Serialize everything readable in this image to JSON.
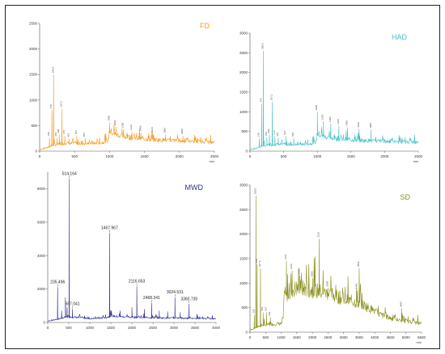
{
  "chart_data": [
    {
      "id": "fd",
      "type": "line",
      "title": "FD",
      "color": "#f39a1e",
      "xlabel": "m/z",
      "xlim": [
        0,
        2500
      ],
      "ylim": [
        0,
        2500
      ],
      "xticks": [
        0,
        500,
        1000,
        1500,
        2000,
        2500
      ],
      "yticks": [
        0,
        500,
        1000,
        1500,
        2000,
        2500
      ],
      "baseline": [
        [
          0,
          30
        ],
        [
          80,
          55
        ],
        [
          150,
          90
        ],
        [
          200,
          120
        ],
        [
          300,
          140
        ],
        [
          400,
          155
        ],
        [
          500,
          150
        ],
        [
          600,
          145
        ],
        [
          700,
          150
        ],
        [
          800,
          155
        ],
        [
          900,
          170
        ],
        [
          980,
          210
        ],
        [
          1000,
          400
        ],
        [
          1050,
          350
        ],
        [
          1150,
          300
        ],
        [
          1300,
          270
        ],
        [
          1500,
          240
        ],
        [
          1700,
          220
        ],
        [
          2000,
          200
        ],
        [
          2300,
          180
        ],
        [
          2500,
          170
        ]
      ],
      "peaks": [
        {
          "x": 200,
          "y": 1500,
          "label": "189.5"
        },
        {
          "x": 175,
          "y": 800,
          "label": "178"
        },
        {
          "x": 320,
          "y": 830,
          "label": "337.2"
        },
        {
          "x": 140,
          "y": 260,
          "label": "138"
        },
        {
          "x": 245,
          "y": 260,
          "label": "251"
        },
        {
          "x": 280,
          "y": 320,
          "label": "289"
        },
        {
          "x": 360,
          "y": 300,
          "label": "370"
        },
        {
          "x": 420,
          "y": 240,
          "label": "416"
        },
        {
          "x": 530,
          "y": 300,
          "label": "527"
        },
        {
          "x": 650,
          "y": 250,
          "label": "653"
        },
        {
          "x": 1000,
          "y": 560,
          "label": "1000"
        },
        {
          "x": 1090,
          "y": 470,
          "label": "1091"
        },
        {
          "x": 1200,
          "y": 420,
          "label": "1200"
        },
        {
          "x": 1320,
          "y": 380,
          "label": "1320"
        },
        {
          "x": 1450,
          "y": 360,
          "label": "1450"
        },
        {
          "x": 1620,
          "y": 330,
          "label": "1620"
        },
        {
          "x": 1800,
          "y": 320,
          "label": "1800"
        },
        {
          "x": 2050,
          "y": 300,
          "label": "2050"
        }
      ]
    },
    {
      "id": "had",
      "type": "line",
      "title": "HAD",
      "color": "#3fbfc6",
      "xlabel": "m/z",
      "xlim": [
        0,
        2500
      ],
      "ylim": [
        0,
        3000
      ],
      "xticks": [
        0,
        500,
        1000,
        1500,
        2000,
        2500
      ],
      "yticks": [
        0,
        500,
        1000,
        1500,
        2000,
        2500,
        3000
      ],
      "baseline": [
        [
          0,
          40
        ],
        [
          80,
          60
        ],
        [
          150,
          110
        ],
        [
          200,
          140
        ],
        [
          300,
          160
        ],
        [
          400,
          175
        ],
        [
          500,
          170
        ],
        [
          600,
          165
        ],
        [
          700,
          170
        ],
        [
          800,
          175
        ],
        [
          900,
          190
        ],
        [
          980,
          230
        ],
        [
          1000,
          450
        ],
        [
          1050,
          400
        ],
        [
          1150,
          350
        ],
        [
          1300,
          320
        ],
        [
          1500,
          290
        ],
        [
          1700,
          270
        ],
        [
          2000,
          250
        ],
        [
          2300,
          230
        ],
        [
          2500,
          220
        ]
      ],
      "peaks": [
        {
          "x": 200,
          "y": 2550,
          "label": "189.5"
        },
        {
          "x": 175,
          "y": 1200,
          "label": "178"
        },
        {
          "x": 330,
          "y": 1250,
          "label": "337.2"
        },
        {
          "x": 140,
          "y": 320,
          "label": "138"
        },
        {
          "x": 250,
          "y": 350,
          "label": "251"
        },
        {
          "x": 290,
          "y": 420,
          "label": "289"
        },
        {
          "x": 370,
          "y": 380,
          "label": "370"
        },
        {
          "x": 420,
          "y": 330,
          "label": "416"
        },
        {
          "x": 530,
          "y": 380,
          "label": "527"
        },
        {
          "x": 650,
          "y": 330,
          "label": "653"
        },
        {
          "x": 1000,
          "y": 1000,
          "label": "1000"
        },
        {
          "x": 1090,
          "y": 760,
          "label": "1091"
        },
        {
          "x": 1200,
          "y": 700,
          "label": "1200"
        },
        {
          "x": 1320,
          "y": 640,
          "label": "1320"
        },
        {
          "x": 1450,
          "y": 600,
          "label": "1450"
        },
        {
          "x": 1620,
          "y": 560,
          "label": "1620"
        },
        {
          "x": 1800,
          "y": 540,
          "label": "1800"
        }
      ]
    },
    {
      "id": "mwd",
      "type": "line",
      "title": "MWD",
      "color": "#2e3192",
      "xlabel": "",
      "xlim": [
        0,
        4000
      ],
      "ylim": [
        0,
        9000
      ],
      "xticks": [
        0,
        500,
        1000,
        1500,
        2000,
        2500,
        3000,
        3500,
        4000
      ],
      "yticks": [
        0,
        2000,
        4000,
        6000,
        8000
      ],
      "baseline": [
        [
          0,
          80
        ],
        [
          100,
          120
        ],
        [
          250,
          200
        ],
        [
          400,
          300
        ],
        [
          500,
          350
        ],
        [
          700,
          300
        ],
        [
          900,
          260
        ],
        [
          1000,
          230
        ],
        [
          1200,
          250
        ],
        [
          1400,
          300
        ],
        [
          1500,
          400
        ],
        [
          1700,
          350
        ],
        [
          2000,
          320
        ],
        [
          2300,
          300
        ],
        [
          2600,
          280
        ],
        [
          3000,
          260
        ],
        [
          3500,
          240
        ],
        [
          4000,
          220
        ]
      ],
      "peaks": [
        {
          "x": 514.164,
          "y": 8600,
          "label": "514.164"
        },
        {
          "x": 1467.967,
          "y": 5350,
          "label": "1467.967"
        },
        {
          "x": 235.496,
          "y": 2100,
          "label": "235.496"
        },
        {
          "x": 2116.653,
          "y": 2150,
          "label": "2116.653"
        },
        {
          "x": 3024.531,
          "y": 1500,
          "label": "3024.531"
        },
        {
          "x": 3360.735,
          "y": 1100,
          "label": "3360.735"
        },
        {
          "x": 2468.341,
          "y": 1150,
          "label": "2468.341"
        },
        {
          "x": 587.041,
          "y": 800,
          "label": "587.041"
        },
        {
          "x": 330,
          "y": 700
        },
        {
          "x": 420,
          "y": 1500
        },
        {
          "x": 460,
          "y": 900
        },
        {
          "x": 1720,
          "y": 700
        },
        {
          "x": 2000,
          "y": 900
        },
        {
          "x": 2300,
          "y": 800
        },
        {
          "x": 2650,
          "y": 700
        },
        {
          "x": 2850,
          "y": 650
        },
        {
          "x": 3150,
          "y": 600
        },
        {
          "x": 3550,
          "y": 500
        }
      ]
    },
    {
      "id": "sd",
      "type": "line",
      "title": "SD",
      "color": "#8a8f1a",
      "xlabel": "m/z",
      "xlim": [
        0,
        5500
      ],
      "ylim": [
        0,
        3000
      ],
      "xticks": [
        0,
        500,
        1000,
        1500,
        2000,
        2500,
        3000,
        3500,
        4000,
        4500,
        5000,
        5500
      ],
      "yticks": [
        0,
        500,
        1000,
        1500,
        2000,
        2500,
        3000
      ],
      "baseline": [
        [
          0,
          40
        ],
        [
          150,
          80
        ],
        [
          300,
          120
        ],
        [
          500,
          150
        ],
        [
          700,
          160
        ],
        [
          900,
          170
        ],
        [
          1050,
          180
        ],
        [
          1100,
          700
        ],
        [
          1300,
          850
        ],
        [
          1500,
          900
        ],
        [
          1800,
          880
        ],
        [
          2000,
          860
        ],
        [
          2300,
          820
        ],
        [
          2600,
          780
        ],
        [
          2900,
          700
        ],
        [
          3200,
          640
        ],
        [
          3500,
          600
        ],
        [
          3800,
          500
        ],
        [
          4200,
          350
        ],
        [
          4700,
          250
        ],
        [
          5200,
          200
        ],
        [
          5500,
          180
        ]
      ],
      "peaks": [
        {
          "x": 189.5,
          "y": 2780,
          "label": "189.5"
        },
        {
          "x": 230,
          "y": 1380,
          "label": "230"
        },
        {
          "x": 337.2,
          "y": 1300,
          "label": "337.2"
        },
        {
          "x": 140,
          "y": 350,
          "label": "138"
        },
        {
          "x": 420,
          "y": 400,
          "label": "416"
        },
        {
          "x": 527,
          "y": 400,
          "label": "527"
        },
        {
          "x": 653,
          "y": 300,
          "label": "653"
        },
        {
          "x": 1167,
          "y": 1450,
          "label": "1167"
        },
        {
          "x": 1350,
          "y": 1250,
          "label": "1350"
        },
        {
          "x": 1600,
          "y": 1150,
          "label": "1600"
        },
        {
          "x": 2006,
          "y": 1100,
          "label": "2006"
        },
        {
          "x": 2219,
          "y": 1900,
          "label": "2219"
        },
        {
          "x": 2500,
          "y": 900,
          "label": "2500"
        },
        {
          "x": 3500,
          "y": 1300,
          "label": "3500"
        },
        {
          "x": 3440,
          "y": 850,
          "label": "3440"
        },
        {
          "x": 4860,
          "y": 480,
          "label": "4860"
        }
      ]
    }
  ]
}
